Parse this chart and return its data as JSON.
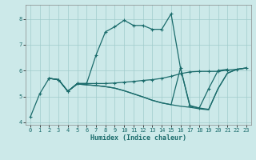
{
  "xlabel": "Humidex (Indice chaleur)",
  "background_color": "#cce9e9",
  "line_color": "#1a6b6b",
  "grid_color": "#a0cccc",
  "xlim": [
    -0.5,
    23.5
  ],
  "ylim": [
    3.9,
    8.55
  ],
  "yticks": [
    4,
    5,
    6,
    7,
    8
  ],
  "xticks": [
    0,
    1,
    2,
    3,
    4,
    5,
    6,
    7,
    8,
    9,
    10,
    11,
    12,
    13,
    14,
    15,
    16,
    17,
    18,
    19,
    20,
    21,
    22,
    23
  ],
  "curve1_x": [
    0,
    1,
    2,
    3,
    4,
    5,
    6,
    7,
    8,
    9,
    10,
    11,
    12,
    13,
    14,
    15,
    16,
    17,
    18,
    19,
    20,
    21
  ],
  "curve1_y": [
    4.2,
    5.1,
    5.7,
    5.65,
    5.2,
    5.5,
    5.5,
    6.6,
    7.5,
    7.7,
    7.95,
    7.75,
    7.75,
    7.6,
    7.6,
    8.2,
    6.1,
    4.65,
    4.55,
    5.3,
    6.0,
    6.05
  ],
  "curve2_x": [
    2,
    3,
    4,
    5,
    6,
    7,
    8,
    9,
    10,
    11,
    12,
    13,
    14,
    15,
    16,
    17,
    18,
    19,
    20,
    21,
    22,
    23
  ],
  "curve2_y": [
    5.7,
    5.65,
    5.2,
    5.5,
    5.5,
    5.5,
    5.5,
    5.52,
    5.55,
    5.58,
    5.62,
    5.65,
    5.7,
    5.78,
    5.88,
    5.95,
    5.97,
    5.97,
    5.97,
    6.02,
    6.05,
    6.1
  ],
  "curve3_x": [
    2,
    3,
    4,
    5,
    6,
    7,
    8,
    9,
    10,
    11,
    12,
    13,
    14,
    15,
    16,
    17,
    18,
    19,
    20,
    21,
    22,
    23
  ],
  "curve3_y": [
    5.7,
    5.65,
    5.2,
    5.48,
    5.45,
    5.42,
    5.38,
    5.32,
    5.22,
    5.1,
    4.98,
    4.85,
    4.75,
    4.68,
    4.62,
    4.58,
    4.52,
    4.48,
    5.3,
    5.9,
    6.05,
    6.1
  ],
  "curve4_x": [
    2,
    3,
    4,
    5,
    6,
    7,
    8,
    9,
    10,
    11,
    12,
    13,
    14,
    15,
    16,
    17,
    18,
    19,
    20,
    21,
    22,
    23
  ],
  "curve4_y": [
    5.7,
    5.65,
    5.2,
    5.48,
    5.45,
    5.42,
    5.38,
    5.32,
    5.22,
    5.1,
    4.98,
    4.85,
    4.75,
    4.68,
    6.1,
    4.62,
    4.55,
    4.5,
    5.3,
    5.9,
    6.05,
    6.1
  ]
}
